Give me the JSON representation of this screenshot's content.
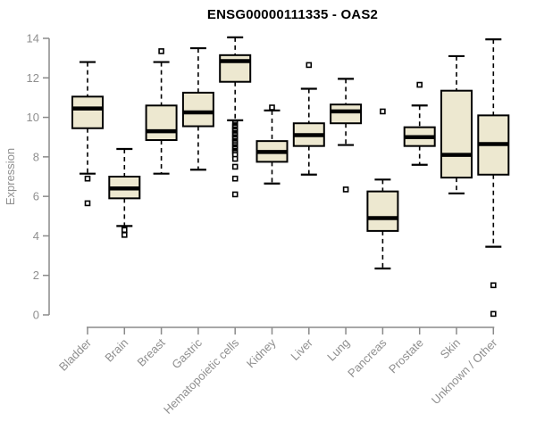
{
  "window": {
    "title": "ENSG00000111335 - OAS2"
  },
  "colors": {
    "box_fill": "#EDE8D0",
    "box_stroke": "#000000",
    "median": "#000000",
    "whisker": "#000000",
    "outlier_stroke": "#000000",
    "outlier_fill": "#ffffff",
    "axis": "#8a8a8a",
    "tick_label": "#8f8f8f",
    "title": "#000000",
    "background": "#ffffff"
  },
  "chart_data": {
    "type": "boxplot",
    "title": "ENSG00000111335 - OAS2",
    "xlabel": "",
    "ylabel": "Expression",
    "ylim": [
      0,
      14
    ],
    "yticks": [
      0,
      2,
      4,
      6,
      8,
      10,
      12,
      14
    ],
    "grid": false,
    "legend": "none",
    "x_label_rotation_deg": 45,
    "categories": [
      "Bladder",
      "Brain",
      "Breast",
      "Gastric",
      "Hematopoietic cells",
      "Kidney",
      "Liver",
      "Lung",
      "Pancreas",
      "Prostate",
      "Skin",
      "Unknown / Other"
    ],
    "boxes": [
      {
        "category": "Bladder",
        "whisker_low": 7.15,
        "q1": 9.45,
        "median": 10.45,
        "q3": 11.05,
        "whisker_high": 12.8,
        "outliers": [
          6.9,
          5.65
        ]
      },
      {
        "category": "Brain",
        "whisker_low": 4.5,
        "q1": 5.9,
        "median": 6.4,
        "q3": 7.0,
        "whisker_high": 8.4,
        "outliers": [
          4.3,
          4.05
        ]
      },
      {
        "category": "Breast",
        "whisker_low": 7.15,
        "q1": 8.85,
        "median": 9.3,
        "q3": 10.6,
        "whisker_high": 12.8,
        "outliers": [
          13.35
        ]
      },
      {
        "category": "Gastric",
        "whisker_low": 7.35,
        "q1": 9.55,
        "median": 10.25,
        "q3": 11.25,
        "whisker_high": 13.5,
        "outliers": []
      },
      {
        "category": "Hematopoietic cells",
        "whisker_low": 9.85,
        "q1": 11.8,
        "median": 12.85,
        "q3": 13.15,
        "whisker_high": 14.05,
        "outliers": [
          9.7,
          9.6,
          9.55,
          9.5,
          9.4,
          9.35,
          9.3,
          9.2,
          9.15,
          9.1,
          9.0,
          8.95,
          8.9,
          8.8,
          8.75,
          8.7,
          8.6,
          8.5,
          8.45,
          8.4,
          8.3,
          8.25,
          8.2,
          8.1,
          7.9,
          7.5,
          6.9,
          6.1
        ]
      },
      {
        "category": "Kidney",
        "whisker_low": 6.65,
        "q1": 7.75,
        "median": 8.25,
        "q3": 8.8,
        "whisker_high": 10.35,
        "outliers": [
          10.5
        ]
      },
      {
        "category": "Liver",
        "whisker_low": 7.1,
        "q1": 8.55,
        "median": 9.1,
        "q3": 9.7,
        "whisker_high": 11.45,
        "outliers": [
          12.65
        ]
      },
      {
        "category": "Lung",
        "whisker_low": 8.6,
        "q1": 9.7,
        "median": 10.3,
        "q3": 10.65,
        "whisker_high": 11.95,
        "outliers": [
          6.35
        ]
      },
      {
        "category": "Pancreas",
        "whisker_low": 2.35,
        "q1": 4.25,
        "median": 4.9,
        "q3": 6.25,
        "whisker_high": 6.85,
        "outliers": [
          10.3
        ]
      },
      {
        "category": "Prostate",
        "whisker_low": 7.6,
        "q1": 8.55,
        "median": 9.0,
        "q3": 9.5,
        "whisker_high": 10.6,
        "outliers": [
          11.65
        ]
      },
      {
        "category": "Skin",
        "whisker_low": 6.15,
        "q1": 6.95,
        "median": 8.1,
        "q3": 11.35,
        "whisker_high": 13.1,
        "outliers": []
      },
      {
        "category": "Unknown / Other",
        "whisker_low": 3.45,
        "q1": 7.1,
        "median": 8.65,
        "q3": 10.1,
        "whisker_high": 13.95,
        "outliers": [
          1.5,
          0.05
        ]
      }
    ]
  }
}
